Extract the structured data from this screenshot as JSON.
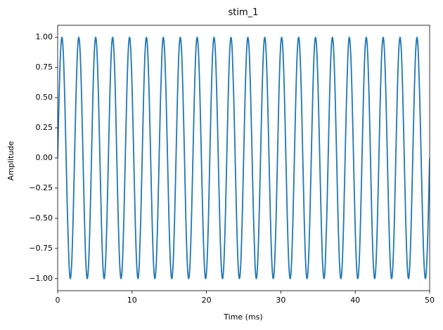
{
  "chart_data": {
    "type": "line",
    "title": "stim_1",
    "xlabel": "Time (ms)",
    "ylabel": "Amplitude",
    "color": "#1f77b4",
    "xlim": [
      0,
      50
    ],
    "xticks": [
      0,
      10,
      20,
      30,
      40,
      50
    ],
    "ylim": [
      -1.1,
      1.1
    ],
    "yticks": [
      {
        "value": -1,
        "label": "−1.00"
      },
      {
        "value": -0.75,
        "label": "−0.75"
      },
      {
        "value": -0.5,
        "label": "−0.50"
      },
      {
        "value": -0.25,
        "label": "−0.25"
      },
      {
        "value": 0,
        "label": "0.00"
      },
      {
        "value": 0.25,
        "label": "0.25"
      },
      {
        "value": 0.5,
        "label": "0.50"
      },
      {
        "value": 0.75,
        "label": "0.75"
      },
      {
        "value": 1,
        "label": "1.00"
      }
    ],
    "x": [
      0,
      0.19,
      0.38,
      0.57,
      0.76,
      0.95,
      1.14,
      1.33,
      1.52,
      1.7,
      1.89,
      2.08,
      2.27,
      2.46,
      2.65,
      2.84,
      3.03,
      3.22,
      3.41,
      3.6,
      3.79,
      3.98,
      4.17,
      4.36,
      4.55,
      4.73,
      4.92,
      5.11,
      5.3,
      5.49,
      5.68,
      5.87,
      6.06,
      6.25,
      6.44,
      6.63,
      6.82,
      7.01,
      7.2,
      7.39,
      7.58,
      7.77,
      7.95,
      8.14,
      8.33,
      8.52,
      8.71,
      8.9,
      9.09,
      9.28,
      9.47,
      9.66,
      9.85,
      10.04,
      10.23,
      10.42,
      10.61,
      10.8,
      10.98,
      11.17,
      11.36,
      11.55,
      11.74,
      11.93,
      12.12,
      12.31,
      12.5,
      12.69,
      12.88,
      13.07,
      13.26,
      13.45,
      13.64,
      13.83,
      14.02,
      14.2,
      14.39,
      14.58,
      14.77,
      14.96,
      15.15,
      15.34,
      15.53,
      15.72,
      15.91,
      16.1,
      16.29,
      16.48,
      16.67,
      16.86,
      17.05,
      17.23,
      17.42,
      17.61,
      17.8,
      17.99,
      18.18,
      18.37,
      18.56,
      18.75,
      18.94,
      19.13,
      19.32,
      19.51,
      19.7,
      19.89,
      20.08,
      20.27,
      20.45,
      20.64,
      20.83,
      21.02,
      21.21,
      21.4,
      21.59,
      21.78,
      21.97,
      22.16,
      22.35,
      22.54,
      22.73,
      22.92,
      23.11,
      23.3,
      23.48,
      23.67,
      23.86,
      24.05,
      24.24,
      24.43,
      24.62,
      24.81,
      25,
      25.19,
      25.38,
      25.57,
      25.76,
      25.95,
      26.14,
      26.33,
      26.52,
      26.7,
      26.89,
      27.08,
      27.27,
      27.46,
      27.65,
      27.84,
      28.03,
      28.22,
      28.41,
      28.6,
      28.79,
      28.98,
      29.17,
      29.36,
      29.55,
      29.73,
      29.92,
      30.11,
      30.3,
      30.49,
      30.68,
      30.87,
      31.06,
      31.25,
      31.44,
      31.63,
      31.82,
      32.01,
      32.2,
      32.39,
      32.58,
      32.77,
      32.95,
      33.14,
      33.33,
      33.52,
      33.71,
      33.9,
      34.09,
      34.28,
      34.47,
      34.66,
      34.85,
      35.04,
      35.23,
      35.42,
      35.61,
      35.8,
      35.98,
      36.17,
      36.36,
      36.55,
      36.74,
      36.93,
      37.12,
      37.31,
      37.5,
      37.69,
      37.88,
      38.07,
      38.26,
      38.45,
      38.64,
      38.83,
      39.02,
      39.2,
      39.39,
      39.58,
      39.77,
      39.96,
      40.15,
      40.34,
      40.53,
      40.72,
      40.91,
      41.1,
      41.29,
      41.48,
      41.67,
      41.86,
      42.05,
      42.23,
      42.42,
      42.61,
      42.8,
      42.99,
      43.18,
      43.37,
      43.56,
      43.75,
      43.94,
      44.13,
      44.32,
      44.51,
      44.7,
      44.89,
      45.08,
      45.27,
      45.45,
      45.64,
      45.83,
      46.02,
      46.21,
      46.4,
      46.59,
      46.78,
      46.97,
      47.16,
      47.35,
      47.54,
      47.73,
      47.92,
      48.11,
      48.3,
      48.48,
      48.67,
      48.86,
      49.05,
      49.24,
      49.43,
      49.62,
      49.81,
      50
    ],
    "values": [
      0,
      0.5,
      0.866,
      1,
      0.866,
      0.5,
      0,
      -0.5,
      -0.866,
      -1,
      -0.866,
      -0.5,
      0,
      0.5,
      0.866,
      1,
      0.866,
      0.5,
      0,
      -0.5,
      -0.866,
      -1,
      -0.866,
      -0.5,
      0,
      0.5,
      0.866,
      1,
      0.866,
      0.5,
      0,
      -0.5,
      -0.866,
      -1,
      -0.866,
      -0.5,
      0,
      0.5,
      0.866,
      1,
      0.866,
      0.5,
      0,
      -0.5,
      -0.866,
      -1,
      -0.866,
      -0.5,
      0,
      0.5,
      0.866,
      1,
      0.866,
      0.5,
      0,
      -0.5,
      -0.866,
      -1,
      -0.866,
      -0.5,
      0,
      0.5,
      0.866,
      1,
      0.866,
      0.5,
      0,
      -0.5,
      -0.866,
      -1,
      -0.866,
      -0.5,
      0,
      0.5,
      0.866,
      1,
      0.866,
      0.5,
      0,
      -0.5,
      -0.866,
      -1,
      -0.866,
      -0.5,
      0,
      0.5,
      0.866,
      1,
      0.866,
      0.5,
      0,
      -0.5,
      -0.866,
      -1,
      -0.866,
      -0.5,
      0,
      0.5,
      0.866,
      1,
      0.866,
      0.5,
      0,
      -0.5,
      -0.866,
      -1,
      -0.866,
      -0.5,
      0,
      0.5,
      0.866,
      1,
      0.866,
      0.5,
      0,
      -0.5,
      -0.866,
      -1,
      -0.866,
      -0.5,
      0,
      0.5,
      0.866,
      1,
      0.866,
      0.5,
      0,
      -0.5,
      -0.866,
      -1,
      -0.866,
      -0.5,
      0,
      0.5,
      0.866,
      1,
      0.866,
      0.5,
      0,
      -0.5,
      -0.866,
      -1,
      -0.866,
      -0.5,
      0,
      0.5,
      0.866,
      1,
      0.866,
      0.5,
      0,
      -0.5,
      -0.866,
      -1,
      -0.866,
      -0.5,
      0,
      0.5,
      0.866,
      1,
      0.866,
      0.5,
      0,
      -0.5,
      -0.866,
      -1,
      -0.866,
      -0.5,
      0,
      0.5,
      0.866,
      1,
      0.866,
      0.5,
      0,
      -0.5,
      -0.866,
      -1,
      -0.866,
      -0.5,
      0,
      0.5,
      0.866,
      1,
      0.866,
      0.5,
      0,
      -0.5,
      -0.866,
      -1,
      -0.866,
      -0.5,
      0,
      0.5,
      0.866,
      1,
      0.866,
      0.5,
      0,
      -0.5,
      -0.866,
      -1,
      -0.866,
      -0.5,
      0,
      0.5,
      0.866,
      1,
      0.866,
      0.5,
      0,
      -0.5,
      -0.866,
      -1,
      -0.866,
      -0.5,
      0,
      0.5,
      0.866,
      1,
      0.866,
      0.5,
      0,
      -0.5,
      -0.866,
      -1,
      -0.866,
      -0.5,
      0,
      0.5,
      0.866,
      1,
      0.866,
      0.5,
      0,
      -0.5,
      -0.866,
      -1,
      -0.866,
      -0.5,
      0,
      0.5,
      0.866,
      1,
      0.866,
      0.5,
      0,
      -0.5,
      -0.866,
      -1,
      -0.866,
      -0.5,
      0,
      0.5,
      0.866,
      1,
      0.866,
      0.5,
      0,
      -0.5,
      -0.866,
      -1,
      -0.866,
      -0.5,
      0
    ]
  }
}
